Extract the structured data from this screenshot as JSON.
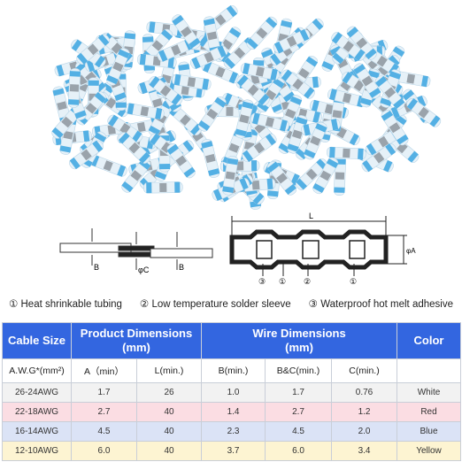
{
  "diagram": {
    "left_labels": [
      "B",
      "φC",
      "B"
    ],
    "right_labels": {
      "length": "L",
      "diameter": "φA",
      "parts": [
        "③",
        "①",
        "②",
        "①"
      ]
    }
  },
  "legend": [
    {
      "number": "①",
      "text": "Heat shrinkable tubing"
    },
    {
      "number": "②",
      "text": "Low temperature solder sleeve"
    },
    {
      "number": "③",
      "text": "Waterproof hot melt adhesive"
    }
  ],
  "table": {
    "header": [
      "Cable Size",
      "Product Dimensions\n(mm)",
      "Wire Dimensions\n(mm)",
      "Color"
    ],
    "subheader": [
      "A.W.G*(mm²)",
      "A（min）",
      "L(min.)",
      "B(min.)",
      "B&C(min.)",
      "C(min.)"
    ],
    "rows": [
      [
        "26-24AWG",
        "1.7",
        "26",
        "1.0",
        "1.7",
        "0.76",
        "White"
      ],
      [
        "22-18AWG",
        "2.7",
        "40",
        "1.4",
        "2.7",
        "1.2",
        "Red"
      ],
      [
        "16-14AWG",
        "4.5",
        "40",
        "2.3",
        "4.5",
        "2.0",
        "Blue"
      ],
      [
        "12-10AWG",
        "6.0",
        "40",
        "3.7",
        "6.0",
        "3.4",
        "Yellow"
      ]
    ]
  }
}
